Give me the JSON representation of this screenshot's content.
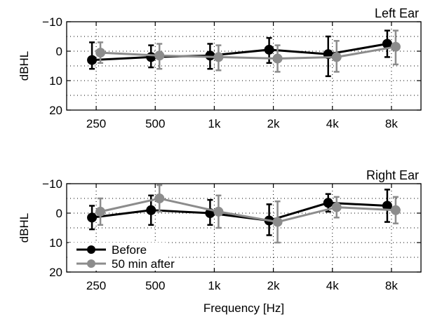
{
  "chart_data": [
    {
      "type": "line",
      "title": "Left Ear",
      "xlabel": "",
      "ylabel": "dBHL",
      "categories": [
        "250",
        "500",
        "1k",
        "2k",
        "4k",
        "8k"
      ],
      "yticks": [
        "−10",
        "0",
        "10",
        "20"
      ],
      "ytick_values": [
        -10,
        0,
        10,
        20
      ],
      "ylim": [
        -10,
        20
      ],
      "y_inverted": true,
      "grid": true,
      "series": [
        {
          "name": "Before",
          "color": "#000000",
          "values": [
            3,
            2,
            1.5,
            -0.5,
            1,
            -2.5
          ],
          "err_low": [
            6,
            4,
            4,
            4,
            6,
            4.5
          ],
          "err_high": [
            3,
            3.5,
            4.5,
            4.5,
            7.5,
            4.5
          ]
        },
        {
          "name": "50 min after",
          "color": "#8c8c8c",
          "values": [
            0.5,
            1.5,
            2,
            2.5,
            2,
            -1.5
          ],
          "err_low": [
            3.5,
            4,
            4,
            4.5,
            5.5,
            5.5
          ],
          "err_high": [
            3.5,
            4.5,
            4.5,
            4.5,
            5,
            6
          ]
        }
      ]
    },
    {
      "type": "line",
      "title": "Right Ear",
      "xlabel": "Frequency [Hz]",
      "ylabel": "dBHL",
      "categories": [
        "250",
        "500",
        "1k",
        "2k",
        "4k",
        "8k"
      ],
      "yticks": [
        "−10",
        "0",
        "10",
        "20"
      ],
      "ytick_values": [
        -10,
        0,
        10,
        20
      ],
      "ylim": [
        -10,
        20
      ],
      "y_inverted": true,
      "grid": true,
      "legend": "bottom-left",
      "series": [
        {
          "name": "Before",
          "color": "#000000",
          "values": [
            1.5,
            -1,
            0,
            2.5,
            -3.5,
            -2.5
          ],
          "err_low": [
            4,
            5,
            4.5,
            5.5,
            3,
            5.5
          ],
          "err_high": [
            4,
            5,
            4,
            5,
            3,
            5.5
          ]
        },
        {
          "name": "50 min after",
          "color": "#8c8c8c",
          "values": [
            -0.5,
            -5,
            -0.5,
            3,
            -2,
            -1
          ],
          "err_low": [
            4.5,
            4.5,
            5.5,
            7,
            3.5,
            4.5
          ],
          "err_high": [
            4.5,
            4.5,
            5.5,
            7,
            3.5,
            4.5
          ]
        }
      ]
    }
  ]
}
